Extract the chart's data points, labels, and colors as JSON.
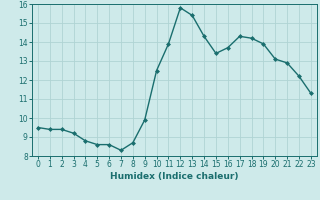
{
  "x": [
    0,
    1,
    2,
    3,
    4,
    5,
    6,
    7,
    8,
    9,
    10,
    11,
    12,
    13,
    14,
    15,
    16,
    17,
    18,
    19,
    20,
    21,
    22,
    23
  ],
  "y": [
    9.5,
    9.4,
    9.4,
    9.2,
    8.8,
    8.6,
    8.6,
    8.3,
    8.7,
    9.9,
    12.5,
    13.9,
    15.8,
    15.4,
    14.3,
    13.4,
    13.7,
    14.3,
    14.2,
    13.9,
    13.1,
    12.9,
    12.2,
    11.3
  ],
  "line_color": "#1a6e6e",
  "marker": "D",
  "markersize": 2,
  "linewidth": 1.0,
  "bg_color": "#ceeaea",
  "grid_color": "#b0d4d4",
  "xlabel": "Humidex (Indice chaleur)",
  "xlim": [
    -0.5,
    23.5
  ],
  "ylim": [
    8,
    16
  ],
  "yticks": [
    8,
    9,
    10,
    11,
    12,
    13,
    14,
    15,
    16
  ],
  "xticks": [
    0,
    1,
    2,
    3,
    4,
    5,
    6,
    7,
    8,
    9,
    10,
    11,
    12,
    13,
    14,
    15,
    16,
    17,
    18,
    19,
    20,
    21,
    22,
    23
  ],
  "tick_fontsize": 5.5,
  "label_fontsize": 6.5
}
